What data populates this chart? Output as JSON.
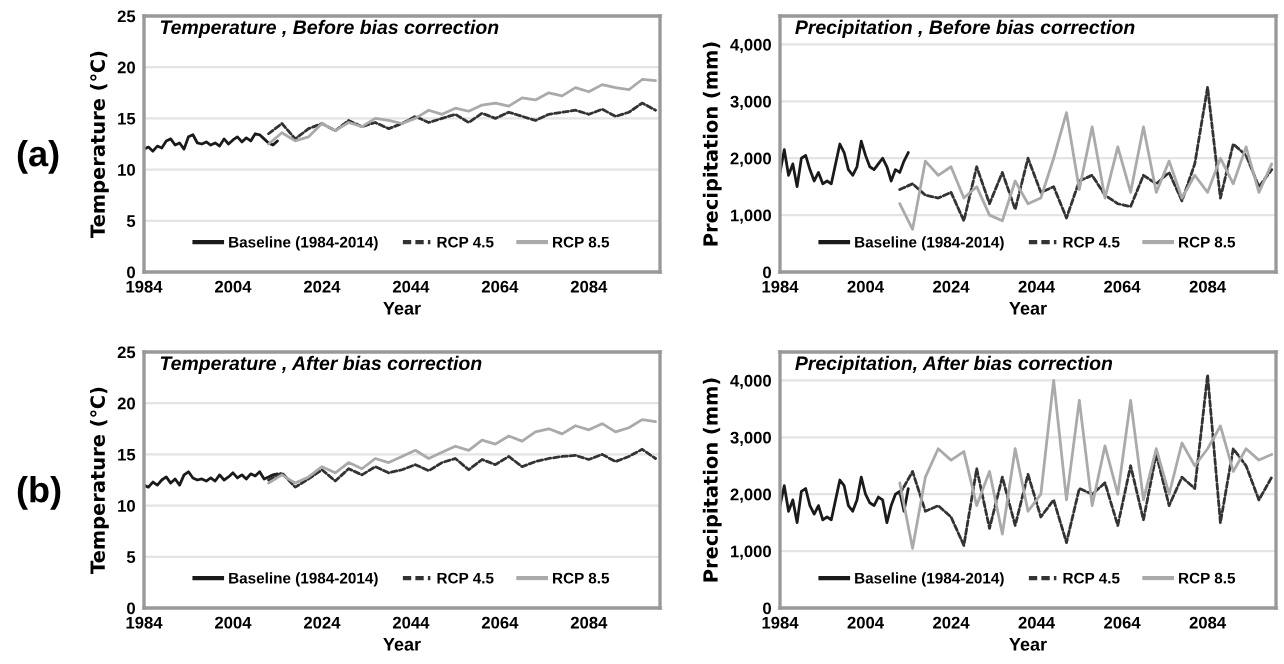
{
  "chart_data": [
    {
      "type": "line",
      "title": "Temperature , Before bias correction",
      "xlabel": "Year",
      "ylabel": "Temperature (℃)",
      "annotations": [
        "(a)"
      ],
      "xlim": [
        1984,
        2100
      ],
      "xticks": [
        1984,
        2004,
        2024,
        2044,
        2064,
        2084
      ],
      "ylim": [
        0,
        25
      ],
      "yticks": [
        0,
        5,
        10,
        15,
        20,
        25
      ],
      "grid": "y",
      "legend": "bottom",
      "series": [
        {
          "name": "Baseline (1984-2014)",
          "color": "#1a1a1a",
          "line_style": "solid",
          "x": [
            1984,
            1985,
            1986,
            1987,
            1988,
            1989,
            1990,
            1991,
            1992,
            1993,
            1994,
            1995,
            1996,
            1997,
            1998,
            1999,
            2000,
            2001,
            2002,
            2003,
            2004,
            2005,
            2006,
            2007,
            2008,
            2009,
            2010,
            2011,
            2012,
            2013,
            2014
          ],
          "values": [
            12,
            12.2,
            11.8,
            12.3,
            12.1,
            12.8,
            13.0,
            12.4,
            12.6,
            12.0,
            13.2,
            13.4,
            12.6,
            12.5,
            12.7,
            12.4,
            12.6,
            12.3,
            13.0,
            12.5,
            12.9,
            13.2,
            12.7,
            13.1,
            12.8,
            13.5,
            13.4,
            13.0,
            12.6,
            12.4,
            12.8
          ]
        },
        {
          "name": "RCP 4.5",
          "color": "#333333",
          "line_style": "dashed",
          "x": [
            2012,
            2015,
            2018,
            2021,
            2024,
            2027,
            2030,
            2033,
            2036,
            2039,
            2042,
            2045,
            2048,
            2051,
            2054,
            2057,
            2060,
            2063,
            2066,
            2069,
            2072,
            2075,
            2078,
            2081,
            2084,
            2087,
            2090,
            2093,
            2096,
            2099
          ],
          "values": [
            13.5,
            14.5,
            13.0,
            14.0,
            14.5,
            13.8,
            14.8,
            14.2,
            14.6,
            14.0,
            14.5,
            15.2,
            14.6,
            15.0,
            15.4,
            14.6,
            15.5,
            15.0,
            15.6,
            15.2,
            14.8,
            15.4,
            15.6,
            15.8,
            15.4,
            15.9,
            15.2,
            15.6,
            16.5,
            15.8
          ]
        },
        {
          "name": "RCP 8.5",
          "color": "#aaaaaa",
          "line_style": "solid",
          "x": [
            2012,
            2015,
            2018,
            2021,
            2024,
            2027,
            2030,
            2033,
            2036,
            2039,
            2042,
            2045,
            2048,
            2051,
            2054,
            2057,
            2060,
            2063,
            2066,
            2069,
            2072,
            2075,
            2078,
            2081,
            2084,
            2087,
            2090,
            2093,
            2096,
            2099
          ],
          "values": [
            12.5,
            13.6,
            12.8,
            13.2,
            14.5,
            13.8,
            14.6,
            14.2,
            15.0,
            14.8,
            14.5,
            15.0,
            15.8,
            15.4,
            16.0,
            15.7,
            16.3,
            16.5,
            16.2,
            17.0,
            16.8,
            17.5,
            17.2,
            18.0,
            17.6,
            18.3,
            18.0,
            17.8,
            18.8,
            18.7
          ]
        }
      ]
    },
    {
      "type": "line",
      "title": "Precipitation , Before bias correction",
      "xlabel": "Year",
      "ylabel": "Precipitation (mm)",
      "xlim": [
        1984,
        2100
      ],
      "xticks": [
        1984,
        2004,
        2024,
        2044,
        2064,
        2084
      ],
      "ylim": [
        0,
        4500
      ],
      "yticks": [
        0,
        {
          "value": 1000,
          "label": "1,000"
        },
        {
          "value": 2000,
          "label": "2,000"
        },
        {
          "value": 3000,
          "label": "3,000"
        },
        {
          "value": 4000,
          "label": "4,000"
        }
      ],
      "grid": "y",
      "legend": "bottom",
      "series": [
        {
          "name": "Baseline (1984-2014)",
          "color": "#1a1a1a",
          "line_style": "solid",
          "x": [
            1984,
            1985,
            1986,
            1987,
            1988,
            1989,
            1990,
            1991,
            1992,
            1993,
            1994,
            1995,
            1996,
            1997,
            1998,
            1999,
            2000,
            2001,
            2002,
            2003,
            2004,
            2005,
            2006,
            2007,
            2008,
            2009,
            2010,
            2011,
            2012,
            2013,
            2014
          ],
          "values": [
            1750,
            2150,
            1700,
            1900,
            1500,
            2000,
            2050,
            1800,
            1600,
            1750,
            1550,
            1600,
            1550,
            1900,
            2250,
            2100,
            1800,
            1700,
            1850,
            2300,
            2050,
            1850,
            1800,
            1900,
            2000,
            1850,
            1600,
            1800,
            1750,
            1950,
            2100
          ]
        },
        {
          "name": "RCP 4.5",
          "color": "#333333",
          "line_style": "dashed",
          "x": [
            2012,
            2015,
            2018,
            2021,
            2024,
            2027,
            2030,
            2033,
            2036,
            2039,
            2042,
            2045,
            2048,
            2051,
            2054,
            2057,
            2060,
            2063,
            2066,
            2069,
            2072,
            2075,
            2078,
            2081,
            2084,
            2087,
            2090,
            2093,
            2096,
            2099
          ],
          "values": [
            1450,
            1550,
            1350,
            1300,
            1400,
            900,
            1850,
            1200,
            1750,
            1100,
            2000,
            1400,
            1500,
            950,
            1600,
            1700,
            1350,
            1200,
            1150,
            1700,
            1550,
            1750,
            1250,
            1900,
            3250,
            1300,
            2250,
            2050,
            1500,
            1800
          ]
        },
        {
          "name": "RCP 8.5",
          "color": "#aaaaaa",
          "line_style": "solid",
          "x": [
            2012,
            2015,
            2018,
            2021,
            2024,
            2027,
            2030,
            2033,
            2036,
            2039,
            2042,
            2045,
            2048,
            2051,
            2054,
            2057,
            2060,
            2063,
            2066,
            2069,
            2072,
            2075,
            2078,
            2081,
            2084,
            2087,
            2090,
            2093,
            2096,
            2099
          ],
          "values": [
            1200,
            750,
            1950,
            1700,
            1850,
            1300,
            1500,
            1000,
            900,
            1600,
            1200,
            1300,
            2000,
            2800,
            1450,
            2550,
            1300,
            2200,
            1400,
            2550,
            1400,
            1950,
            1300,
            1700,
            1400,
            2000,
            1550,
            2200,
            1400,
            1900
          ]
        }
      ]
    },
    {
      "type": "line",
      "title": "Temperature , After bias correction",
      "xlabel": "Year",
      "ylabel": "Temperature (℃)",
      "annotations": [
        "(b)"
      ],
      "xlim": [
        1984,
        2100
      ],
      "xticks": [
        1984,
        2004,
        2024,
        2044,
        2064,
        2084
      ],
      "ylim": [
        0,
        25
      ],
      "yticks": [
        0,
        5,
        10,
        15,
        20,
        25
      ],
      "grid": "y",
      "legend": "bottom",
      "series": [
        {
          "name": "Baseline (1984-2014)",
          "color": "#1a1a1a",
          "line_style": "solid",
          "x": [
            1984,
            1985,
            1986,
            1987,
            1988,
            1989,
            1990,
            1991,
            1992,
            1993,
            1994,
            1995,
            1996,
            1997,
            1998,
            1999,
            2000,
            2001,
            2002,
            2003,
            2004,
            2005,
            2006,
            2007,
            2008,
            2009,
            2010,
            2011,
            2012,
            2013,
            2014
          ],
          "values": [
            12,
            11.8,
            12.3,
            12.0,
            12.5,
            12.8,
            12.2,
            12.6,
            12.0,
            13.0,
            13.3,
            12.7,
            12.5,
            12.6,
            12.4,
            12.7,
            12.4,
            13.0,
            12.5,
            12.8,
            13.2,
            12.7,
            13.0,
            12.6,
            13.1,
            12.9,
            13.3,
            12.6,
            12.8,
            13.0,
            13.1
          ]
        },
        {
          "name": "RCP 4.5",
          "color": "#333333",
          "line_style": "dashed",
          "x": [
            2012,
            2015,
            2018,
            2021,
            2024,
            2027,
            2030,
            2033,
            2036,
            2039,
            2042,
            2045,
            2048,
            2051,
            2054,
            2057,
            2060,
            2063,
            2066,
            2069,
            2072,
            2075,
            2078,
            2081,
            2084,
            2087,
            2090,
            2093,
            2096,
            2099
          ],
          "values": [
            12.5,
            13.2,
            11.8,
            12.6,
            13.5,
            12.4,
            13.6,
            13.0,
            13.8,
            13.2,
            13.5,
            14.0,
            13.4,
            14.2,
            14.6,
            13.5,
            14.5,
            14.0,
            14.8,
            13.8,
            14.3,
            14.6,
            14.8,
            14.9,
            14.5,
            15.0,
            14.3,
            14.8,
            15.5,
            14.6
          ]
        },
        {
          "name": "RCP 8.5",
          "color": "#aaaaaa",
          "line_style": "solid",
          "x": [
            2012,
            2015,
            2018,
            2021,
            2024,
            2027,
            2030,
            2033,
            2036,
            2039,
            2042,
            2045,
            2048,
            2051,
            2054,
            2057,
            2060,
            2063,
            2066,
            2069,
            2072,
            2075,
            2078,
            2081,
            2084,
            2087,
            2090,
            2093,
            2096,
            2099
          ],
          "values": [
            12.2,
            13.0,
            12.2,
            12.8,
            13.8,
            13.2,
            14.2,
            13.6,
            14.6,
            14.2,
            14.8,
            15.4,
            14.6,
            15.2,
            15.8,
            15.4,
            16.4,
            16.0,
            16.8,
            16.3,
            17.2,
            17.5,
            17.0,
            17.8,
            17.4,
            18.0,
            17.2,
            17.6,
            18.4,
            18.2
          ]
        }
      ]
    },
    {
      "type": "line",
      "title": "Precipitation, After bias correction",
      "xlabel": "Year",
      "ylabel": "Precipitation (mm)",
      "xlim": [
        1984,
        2100
      ],
      "xticks": [
        1984,
        2004,
        2024,
        2044,
        2064,
        2084
      ],
      "ylim": [
        0,
        4500
      ],
      "yticks": [
        0,
        {
          "value": 1000,
          "label": "1,000"
        },
        {
          "value": 2000,
          "label": "2,000"
        },
        {
          "value": 3000,
          "label": "3,000"
        },
        {
          "value": 4000,
          "label": "4,000"
        }
      ],
      "grid": "y",
      "legend": "bottom",
      "series": [
        {
          "name": "Baseline (1984-2014)",
          "color": "#1a1a1a",
          "line_style": "solid",
          "x": [
            1984,
            1985,
            1986,
            1987,
            1988,
            1989,
            1990,
            1991,
            1992,
            1993,
            1994,
            1995,
            1996,
            1997,
            1998,
            1999,
            2000,
            2001,
            2002,
            2003,
            2004,
            2005,
            2006,
            2007,
            2008,
            2009,
            2010,
            2011,
            2012,
            2013,
            2014
          ],
          "values": [
            1800,
            2150,
            1700,
            1900,
            1500,
            2050,
            2100,
            1800,
            1650,
            1800,
            1550,
            1600,
            1550,
            1900,
            2250,
            2150,
            1800,
            1700,
            1900,
            2300,
            2000,
            1850,
            1800,
            1950,
            1900,
            1500,
            1800,
            2000,
            2050,
            1700,
            2100
          ]
        },
        {
          "name": "RCP 4.5",
          "color": "#333333",
          "line_style": "dashed",
          "x": [
            2012,
            2015,
            2018,
            2021,
            2024,
            2027,
            2030,
            2033,
            2036,
            2039,
            2042,
            2045,
            2048,
            2051,
            2054,
            2057,
            2060,
            2063,
            2066,
            2069,
            2072,
            2075,
            2078,
            2081,
            2084,
            2087,
            2090,
            2093,
            2096,
            2099
          ],
          "values": [
            2000,
            2400,
            1700,
            1800,
            1600,
            1100,
            2450,
            1400,
            2300,
            1450,
            2350,
            1600,
            1900,
            1150,
            2100,
            2000,
            2200,
            1450,
            2500,
            1550,
            2700,
            1800,
            2300,
            2100,
            4100,
            1500,
            2800,
            2500,
            1900,
            2300
          ]
        },
        {
          "name": "RCP 8.5",
          "color": "#aaaaaa",
          "line_style": "solid",
          "x": [
            2012,
            2015,
            2018,
            2021,
            2024,
            2027,
            2030,
            2033,
            2036,
            2039,
            2042,
            2045,
            2048,
            2051,
            2054,
            2057,
            2060,
            2063,
            2066,
            2069,
            2072,
            2075,
            2078,
            2081,
            2084,
            2087,
            2090,
            2093,
            2096,
            2099
          ],
          "values": [
            2200,
            1050,
            2300,
            2800,
            2600,
            2750,
            1800,
            2400,
            1300,
            2800,
            1700,
            2000,
            4000,
            1900,
            3650,
            1800,
            2850,
            2000,
            3650,
            1900,
            2800,
            2000,
            2900,
            2500,
            2800,
            3200,
            2400,
            2800,
            2600,
            2700
          ]
        }
      ]
    }
  ]
}
